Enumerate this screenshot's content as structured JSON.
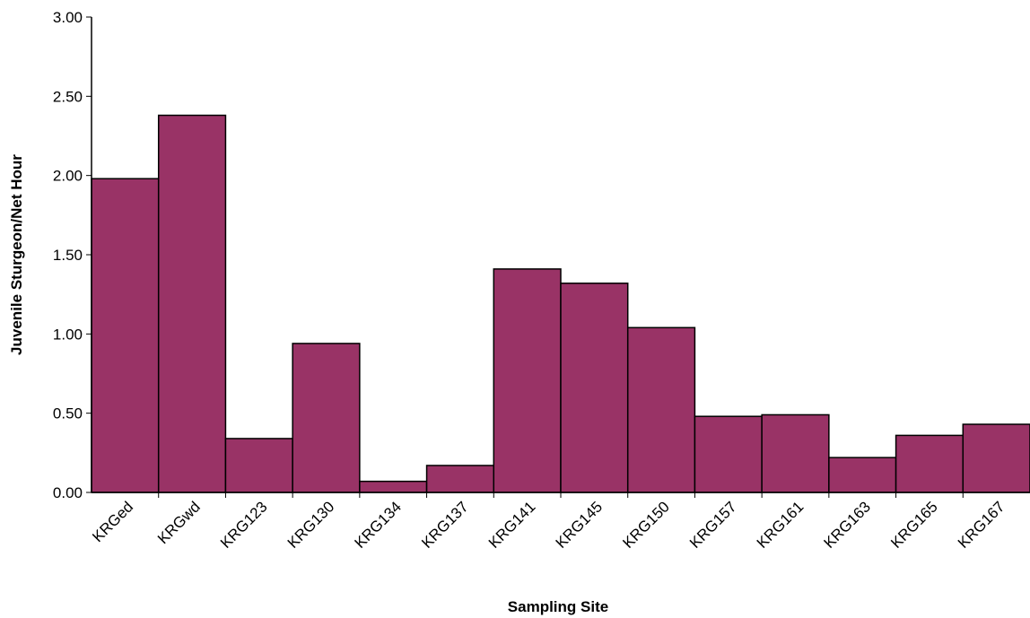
{
  "chart_data": {
    "type": "bar",
    "x_label": "Sampling Site",
    "y_label": "Juvenile Sturgeon/Net Hour",
    "categories": [
      "KRGed",
      "KRGwd",
      "KRG123",
      "KRG130",
      "KRG134",
      "KRG137",
      "KRG141",
      "KRG145",
      "KRG150",
      "KRG157",
      "KRG161",
      "KRG163",
      "KRG165",
      "KRG167"
    ],
    "values": [
      1.98,
      2.38,
      0.34,
      0.94,
      0.07,
      0.17,
      1.41,
      1.32,
      1.04,
      0.48,
      0.49,
      0.22,
      0.36,
      0.43
    ],
    "color": "#993366",
    "ylim": [
      0,
      3
    ],
    "yticks": [
      {
        "value": 0,
        "label": "0.00"
      },
      {
        "value": 0.5,
        "label": "0.50"
      },
      {
        "value": 1,
        "label": "1.00"
      },
      {
        "value": 1.5,
        "label": "1.50"
      },
      {
        "value": 2,
        "label": "2.00"
      },
      {
        "value": 2.5,
        "label": "2.50"
      },
      {
        "value": 3,
        "label": "3.00"
      }
    ]
  }
}
